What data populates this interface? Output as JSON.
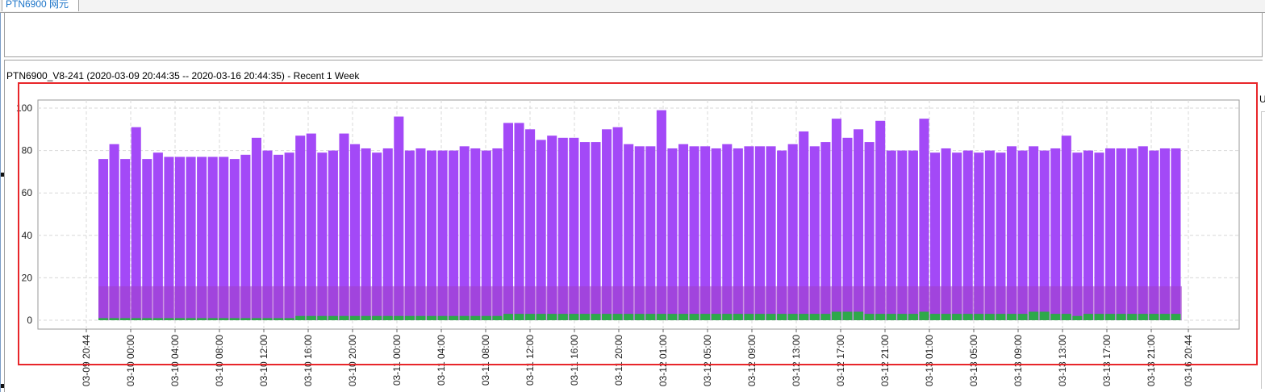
{
  "tab": {
    "label": "PTN6900 网元"
  },
  "chart_title": "PTN6900_V8-241 (2020-03-09 20:44:35 -- 2020-03-16 20:44:35) - Recent 1 Week",
  "side_label": "U",
  "colors": {
    "bar": "#a349f7",
    "band": "#a040c8",
    "low_bar": "#2ea84a",
    "selection": "#e8262a"
  },
  "chart_data": {
    "type": "bar",
    "ylim": [
      0,
      100
    ],
    "y_ticks": [
      "0",
      "20",
      "40",
      "60",
      "80",
      "100"
    ],
    "x_ticks": [
      "03-09 20:44",
      "03-10 00:00",
      "03-10 04:00",
      "03-10 08:00",
      "03-10 12:00",
      "03-10 16:00",
      "03-10 20:00",
      "03-11 00:00",
      "03-11 04:00",
      "03-11 08:00",
      "03-11 12:00",
      "03-11 16:00",
      "03-11 20:00",
      "03-12 01:00",
      "03-12 05:00",
      "03-12 09:00",
      "03-12 13:00",
      "03-12 17:00",
      "03-12 21:00",
      "03-13 01:00",
      "03-13 05:00",
      "03-13 09:00",
      "03-13 13:00",
      "03-13 17:00",
      "03-13 21:00",
      "03-16 20:44"
    ],
    "grid": true,
    "band": {
      "from": 0,
      "to": 16
    },
    "series": [
      {
        "values": [
          76,
          83,
          76,
          91,
          76,
          79,
          77,
          77,
          77,
          77,
          77,
          77,
          76,
          78,
          86,
          80,
          78,
          79,
          87,
          88,
          79,
          80,
          88,
          83,
          81,
          79,
          81,
          96,
          80,
          81,
          80,
          80,
          80,
          82,
          81,
          80,
          81,
          93,
          93,
          90,
          85,
          87,
          86,
          86,
          84,
          84,
          90,
          91,
          83,
          82,
          82,
          99,
          81,
          83,
          82,
          82,
          81,
          83,
          81,
          82,
          82,
          82,
          80,
          83,
          89,
          82,
          84,
          95,
          86,
          90,
          84,
          94,
          80,
          80,
          80,
          95,
          79,
          81,
          79,
          80,
          79,
          80,
          79,
          82,
          80,
          82,
          80,
          81,
          87,
          79,
          80,
          79,
          81,
          81,
          81,
          82,
          80,
          81,
          81
        ]
      },
      {
        "values": [
          1,
          1,
          1,
          1,
          1,
          1,
          1,
          1,
          1,
          1,
          1,
          1,
          1,
          1,
          1,
          1,
          1,
          1,
          2,
          2,
          2,
          2,
          2,
          2,
          2,
          2,
          2,
          2,
          2,
          2,
          2,
          2,
          2,
          2,
          2,
          2,
          2,
          3,
          3,
          3,
          3,
          3,
          3,
          3,
          3,
          3,
          3,
          3,
          3,
          3,
          3,
          3,
          3,
          3,
          3,
          3,
          3,
          3,
          3,
          3,
          3,
          3,
          3,
          3,
          3,
          3,
          3,
          4,
          4,
          4,
          3,
          3,
          3,
          3,
          3,
          4,
          3,
          3,
          3,
          3,
          3,
          3,
          3,
          3,
          3,
          4,
          4,
          3,
          3,
          2,
          3,
          3,
          3,
          3,
          3,
          3,
          3,
          3,
          3
        ]
      }
    ]
  }
}
